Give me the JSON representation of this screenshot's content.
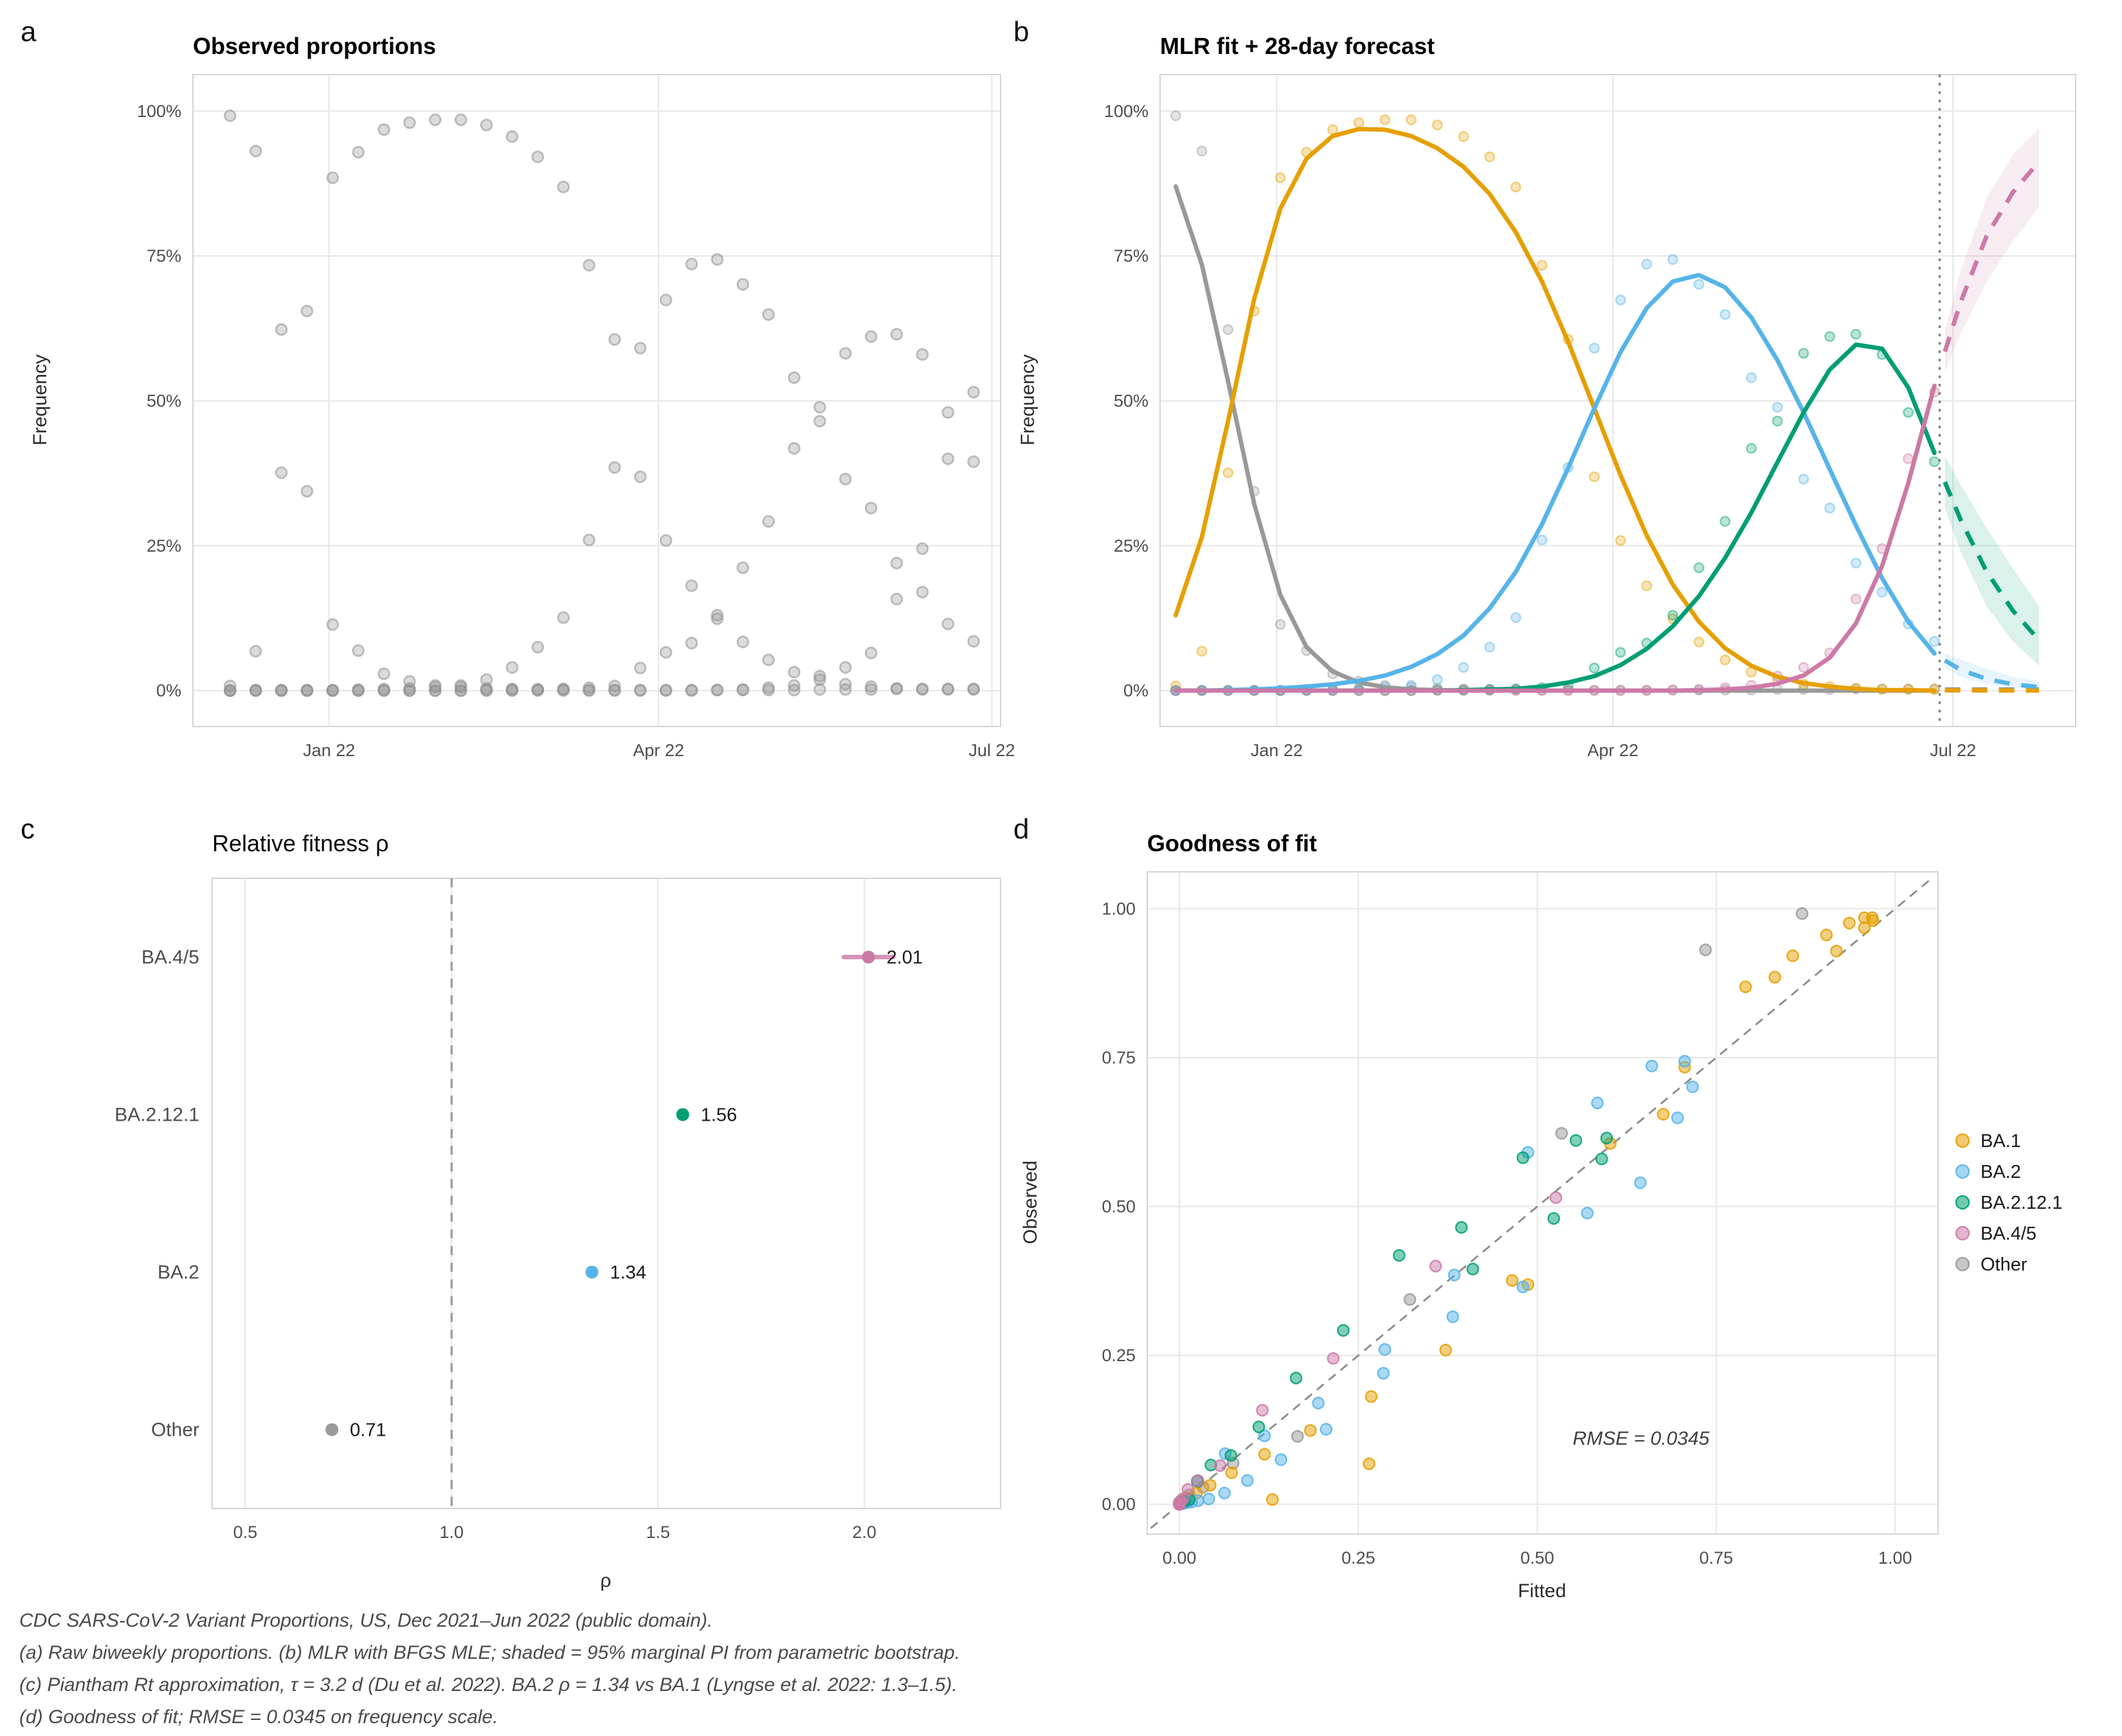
{
  "figure": {
    "panel_tags": [
      "a",
      "b",
      "c",
      "d"
    ],
    "caption_lines": [
      "CDC SARS-CoV-2 Variant Proportions, US, Dec 2021–Jun 2022 (public domain).",
      "(a) Raw biweekly proportions. (b) MLR with BFGS MLE; shaded = 95% marginal PI from parametric bootstrap.",
      "(c) Piantham Rt approximation, τ = 3.2 d (Du et al. 2022). BA.2 ρ = 1.34 vs BA.1 (Lyngse et al. 2022: 1.3–1.5).",
      "(d) Goodness of fit; RMSE = 0.0345 on frequency scale."
    ]
  },
  "variants": [
    "Other",
    "BA.1",
    "BA.2",
    "BA.2.12.1",
    "BA.4/5"
  ],
  "palette": {
    "BA.1": "#E69F00",
    "BA.2": "#56B4E9",
    "BA.2.12.1": "#009E73",
    "BA.4/5": "#CC79A7",
    "Other": "#999999",
    "gray_point": "#8f8f8f",
    "grid": "#e6e6e6",
    "ref_dash": "#999999",
    "dotted_vline": "#7f7f7f"
  },
  "chart_data": [
    {
      "id": "a",
      "type": "scatter",
      "title": "Observed proportions",
      "ylabel": "Frequency",
      "ylim": [
        0,
        100
      ],
      "grid": "major-only",
      "x_ticks": [
        {
          "t": 3.86,
          "label": "Jan 22"
        },
        {
          "t": 16.71,
          "label": "Apr 22"
        },
        {
          "t": 29.71,
          "label": "Jul 22"
        }
      ],
      "y_ticks": {
        "values": [
          0,
          25,
          50,
          75,
          100
        ],
        "labels": [
          "0%",
          "25%",
          "50%",
          "75%",
          "100%"
        ]
      },
      "time_weeks": [
        0,
        1,
        2,
        3,
        4,
        5,
        6,
        7,
        8,
        9,
        10,
        11,
        12,
        13,
        14,
        15,
        16,
        17,
        18,
        19,
        20,
        21,
        22,
        23,
        24,
        25,
        26,
        27,
        28,
        29
      ],
      "observed_pct": {
        "Other": [
          99.2,
          93.1,
          62.3,
          34.4,
          11.4,
          6.9,
          2.9,
          1.6,
          0.9,
          0.6,
          0.4,
          0.3,
          0.2,
          0.2,
          0.1,
          0.1,
          0.1,
          0.1,
          0.1,
          0.1,
          0.1,
          0.1,
          0.1,
          0.2,
          0.2,
          0.2,
          0.3,
          0.3,
          0.3,
          0.3
        ],
        "BA.1": [
          0.8,
          6.8,
          37.6,
          65.5,
          88.5,
          92.9,
          96.8,
          98.0,
          98.5,
          98.5,
          97.6,
          95.6,
          92.1,
          86.9,
          73.4,
          60.6,
          36.9,
          25.9,
          18.1,
          12.4,
          8.4,
          5.3,
          3.2,
          1.9,
          1.1,
          0.7,
          0.4,
          0.2,
          0.2,
          0.2
        ],
        "BA.2": [
          0.0,
          0.1,
          0.1,
          0.1,
          0.1,
          0.2,
          0.3,
          0.4,
          0.6,
          0.9,
          1.9,
          4.0,
          7.5,
          12.6,
          26.0,
          38.5,
          59.1,
          67.4,
          73.6,
          74.4,
          70.1,
          64.9,
          54.0,
          48.9,
          36.5,
          31.5,
          22.0,
          17.0,
          11.5,
          8.5
        ],
        "BA.2.12.1": [
          0,
          0,
          0,
          0,
          0,
          0,
          0,
          0,
          0,
          0,
          0.1,
          0.1,
          0.2,
          0.3,
          0.5,
          0.8,
          3.9,
          6.6,
          8.2,
          13.0,
          21.2,
          29.2,
          41.8,
          46.5,
          58.2,
          61.1,
          61.5,
          58.0,
          48.0,
          39.5
        ],
        "BA.4/5": [
          0,
          0,
          0,
          0,
          0,
          0,
          0,
          0,
          0,
          0,
          0,
          0,
          0,
          0,
          0,
          0,
          0,
          0,
          0,
          0.1,
          0.2,
          0.5,
          0.9,
          2.5,
          4.0,
          6.5,
          15.8,
          24.5,
          40.0,
          51.5
        ]
      }
    },
    {
      "id": "b",
      "type": "line",
      "title": "MLR fit + 28-day forecast",
      "ylabel": "Frequency",
      "ylim": [
        0,
        100
      ],
      "x_ticks": [
        {
          "t": 3.86,
          "label": "Jan 22"
        },
        {
          "t": 16.71,
          "label": "Apr 22"
        },
        {
          "t": 29.71,
          "label": "Jul 22"
        }
      ],
      "y_ticks": {
        "values": [
          0,
          25,
          50,
          75,
          100
        ],
        "labels": [
          "0%",
          "25%",
          "50%",
          "75%",
          "100%"
        ]
      },
      "last_observed_t": 29.2,
      "fitted_pct": {
        "Other": [
          87.0,
          73.5,
          53.4,
          32.2,
          16.5,
          7.5,
          3.3,
          1.4,
          0.6,
          0.2,
          0.1,
          0.0,
          0.0,
          0.0,
          0.0,
          0.0,
          0.0,
          0.0,
          0.0,
          0.0,
          0.0,
          0.0,
          0.0,
          0.0,
          0.0,
          0.0,
          0.0,
          0.0,
          0.0,
          0.0
        ],
        "BA.1": [
          13.0,
          26.5,
          46.5,
          67.6,
          83.2,
          91.8,
          95.7,
          96.9,
          96.8,
          95.7,
          93.6,
          90.4,
          85.7,
          79.1,
          70.6,
          60.2,
          48.7,
          37.2,
          26.8,
          18.3,
          11.9,
          7.3,
          4.3,
          2.4,
          1.3,
          0.7,
          0.3,
          0.1,
          0.1,
          0.0
        ],
        "BA.2": [
          0.0,
          0.0,
          0.1,
          0.2,
          0.4,
          0.7,
          1.1,
          1.7,
          2.6,
          4.1,
          6.3,
          9.5,
          14.2,
          20.5,
          28.7,
          38.4,
          48.7,
          58.4,
          66.0,
          70.6,
          71.7,
          69.6,
          64.4,
          57.0,
          48.0,
          38.2,
          28.5,
          19.4,
          11.9,
          6.4
        ],
        "BA.2.12.1": [
          0,
          0,
          0,
          0,
          0,
          0,
          0,
          0.0,
          0.0,
          0.0,
          0.0,
          0.1,
          0.2,
          0.3,
          0.7,
          1.4,
          2.5,
          4.4,
          7.2,
          11.1,
          16.3,
          22.9,
          30.7,
          39.4,
          48.0,
          55.4,
          59.7,
          59.0,
          52.3,
          41.0
        ],
        "BA.4/5": [
          0,
          0,
          0,
          0,
          0,
          0,
          0,
          0,
          0,
          0,
          0,
          0,
          0,
          0,
          0.0,
          0.0,
          0.0,
          0.0,
          0.0,
          0.0,
          0.1,
          0.2,
          0.5,
          1.2,
          2.6,
          5.7,
          11.6,
          21.5,
          35.8,
          52.6
        ]
      },
      "forecast": {
        "t": [
          29.4,
          30,
          31,
          32,
          33
        ],
        "mean_pct": {
          "Other": [
            0.2,
            0.2,
            0.2,
            0.2,
            0.2
          ],
          "BA.1": [
            0.05,
            0.04,
            0.03,
            0.02,
            0.02
          ],
          "BA.2": [
            5.2,
            3.6,
            2.0,
            1.1,
            0.6
          ],
          "BA.2.12.1": [
            36.0,
            29.5,
            20.5,
            13.8,
            8.7
          ],
          "BA.4/5": [
            58.5,
            67.0,
            78.5,
            86.0,
            91.3
          ]
        },
        "ribbons": {
          "BA.2": {
            "lo": [
              4.0,
              2.4,
              1.1,
              0.5,
              0.2
            ],
            "hi": [
              6.4,
              5.4,
              3.7,
              2.4,
              1.6
            ]
          },
          "BA.2.12.1": {
            "lo": [
              31.5,
              24.0,
              14.5,
              8.5,
              4.3
            ],
            "hi": [
              40.5,
              35.5,
              28.0,
              21.0,
              14.5
            ]
          },
          "BA.4/5": {
            "lo": [
              55.0,
              61.5,
              70.5,
              77.5,
              83.5
            ],
            "hi": [
              62.0,
              72.5,
              85.0,
              92.5,
              97.0
            ]
          }
        },
        "ribbon_label": "95% marginal PI"
      }
    },
    {
      "id": "c",
      "type": "dot",
      "title": "Relative fitness ρ",
      "xlabel": "ρ",
      "x_ticks": {
        "values": [
          0.5,
          1.0,
          1.5,
          2.0
        ],
        "labels": [
          "0.5",
          "1.0",
          "1.5",
          "2.0"
        ]
      },
      "xlim": [
        0.42,
        2.33
      ],
      "ref_line": 1.0,
      "rows": [
        {
          "label": "BA.4/5",
          "value": 2.01,
          "value_label": "2.01",
          "color_key": "BA.4/5",
          "ci": [
            1.95,
            2.07
          ]
        },
        {
          "label": "BA.2.12.1",
          "value": 1.56,
          "value_label": "1.56",
          "color_key": "BA.2.12.1",
          "ci": null
        },
        {
          "label": "BA.2",
          "value": 1.34,
          "value_label": "1.34",
          "color_key": "BA.2",
          "ci": null
        },
        {
          "label": "Other",
          "value": 0.71,
          "value_label": "0.71",
          "color_key": "Other",
          "ci": null
        }
      ]
    },
    {
      "id": "d",
      "type": "scatter",
      "title": "Goodness of fit",
      "xlabel": "Fitted",
      "ylabel": "Observed",
      "x_ticks": {
        "values": [
          0,
          0.25,
          0.5,
          0.75,
          1.0
        ],
        "labels": [
          "0.00",
          "0.25",
          "0.50",
          "0.75",
          "1.00"
        ]
      },
      "y_ticks": {
        "values": [
          0,
          0.25,
          0.5,
          0.75,
          1.0
        ],
        "labels": [
          "0.00",
          "0.25",
          "0.50",
          "0.75",
          "1.00"
        ]
      },
      "identity_line": true,
      "points_source": "observed_pct vs fitted_pct (fractions)",
      "annotation": "RMSE = 0.0345",
      "annotation_x": 0.645,
      "annotation_y": 0.1,
      "legend": {
        "position": "right",
        "entries": [
          "BA.1",
          "BA.2",
          "BA.2.12.1",
          "BA.4/5",
          "Other"
        ]
      }
    }
  ]
}
